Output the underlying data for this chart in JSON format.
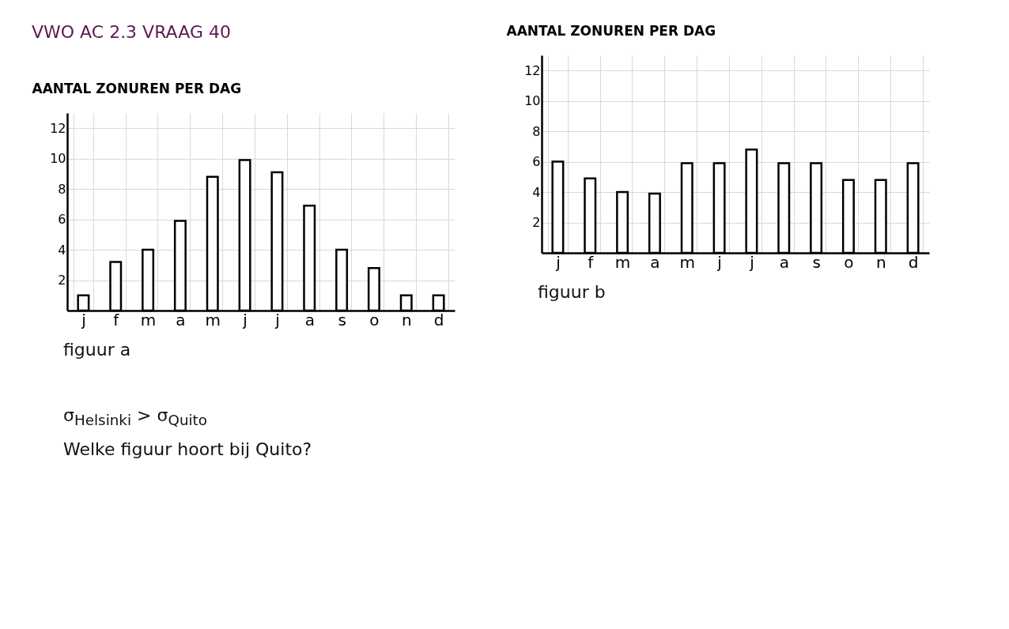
{
  "chart_data": [
    {
      "type": "bar",
      "title": "VWO AC 2.3 VRAAG 40",
      "ylabel": "AANTAL ZONUREN PER DAG",
      "categories": [
        "j",
        "f",
        "m",
        "a",
        "m",
        "j",
        "j",
        "a",
        "s",
        "o",
        "n",
        "d"
      ],
      "values": [
        1,
        3.2,
        4,
        5.9,
        8.8,
        9.9,
        9.1,
        6.9,
        4,
        2.8,
        1,
        1
      ],
      "color": "#ffffff",
      "ylim": [
        0,
        13
      ],
      "yticks": [
        2,
        4,
        6,
        8,
        10,
        12
      ],
      "grid": true,
      "annotations": [
        "figuur a",
        "σ$_{Helsinki}$ > σ$_{Quito}$",
        "Welke figuur hoort bij Quito?"
      ]
    },
    {
      "type": "bar",
      "ylabel": "AANTAL ZONUREN PER DAG",
      "categories": [
        "j",
        "f",
        "m",
        "a",
        "m",
        "j",
        "j",
        "a",
        "s",
        "o",
        "n",
        "d"
      ],
      "values": [
        6,
        4.9,
        4,
        3.9,
        5.9,
        5.9,
        6.8,
        5.9,
        5.9,
        4.8,
        4.8,
        5.9
      ],
      "color": "#ffffff",
      "ylim": [
        0,
        13
      ],
      "yticks": [
        2,
        4,
        6,
        8,
        10,
        12
      ],
      "grid": true,
      "annotations": [
        "figuur b"
      ]
    }
  ]
}
